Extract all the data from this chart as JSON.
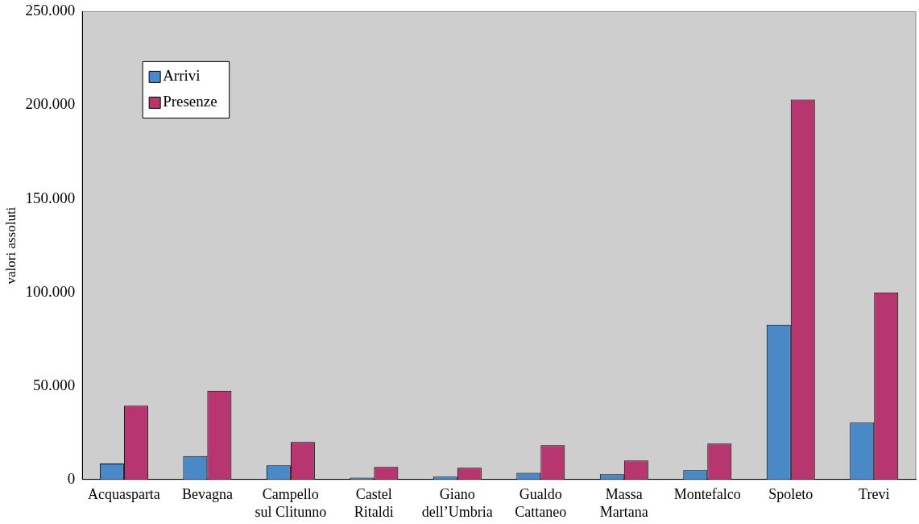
{
  "chart_data": {
    "type": "bar",
    "ylabel": "valori assoluti",
    "categories": [
      "Acquasparta",
      "Bevagna",
      "Campello sul Clitunno",
      "Castel Ritaldi",
      "Giano dell’Umbria",
      "Gualdo Cattaneo",
      "Massa Martana",
      "Montefalco",
      "Spoleto",
      "Trevi"
    ],
    "series": [
      {
        "name": "Arrivi",
        "color": "#4a88c8",
        "values": [
          8500,
          12500,
          7600,
          1000,
          1500,
          3600,
          2800,
          5000,
          82700,
          30400
        ]
      },
      {
        "name": "Presenze",
        "color": "#b83670",
        "values": [
          39400,
          47400,
          20100,
          6700,
          6300,
          18300,
          10100,
          19200,
          203000,
          100000
        ]
      }
    ],
    "ylim": [
      0,
      250000
    ],
    "yticks": [
      0,
      {
        "value": 50000,
        "label": "50.000"
      },
      {
        "value": 100000,
        "label": "100.000"
      },
      {
        "value": 150000,
        "label": "150.000"
      },
      {
        "value": 200000,
        "label": "200.000"
      },
      {
        "value": 250000,
        "label": "250.000"
      }
    ],
    "grid": false,
    "legend": "top left"
  }
}
